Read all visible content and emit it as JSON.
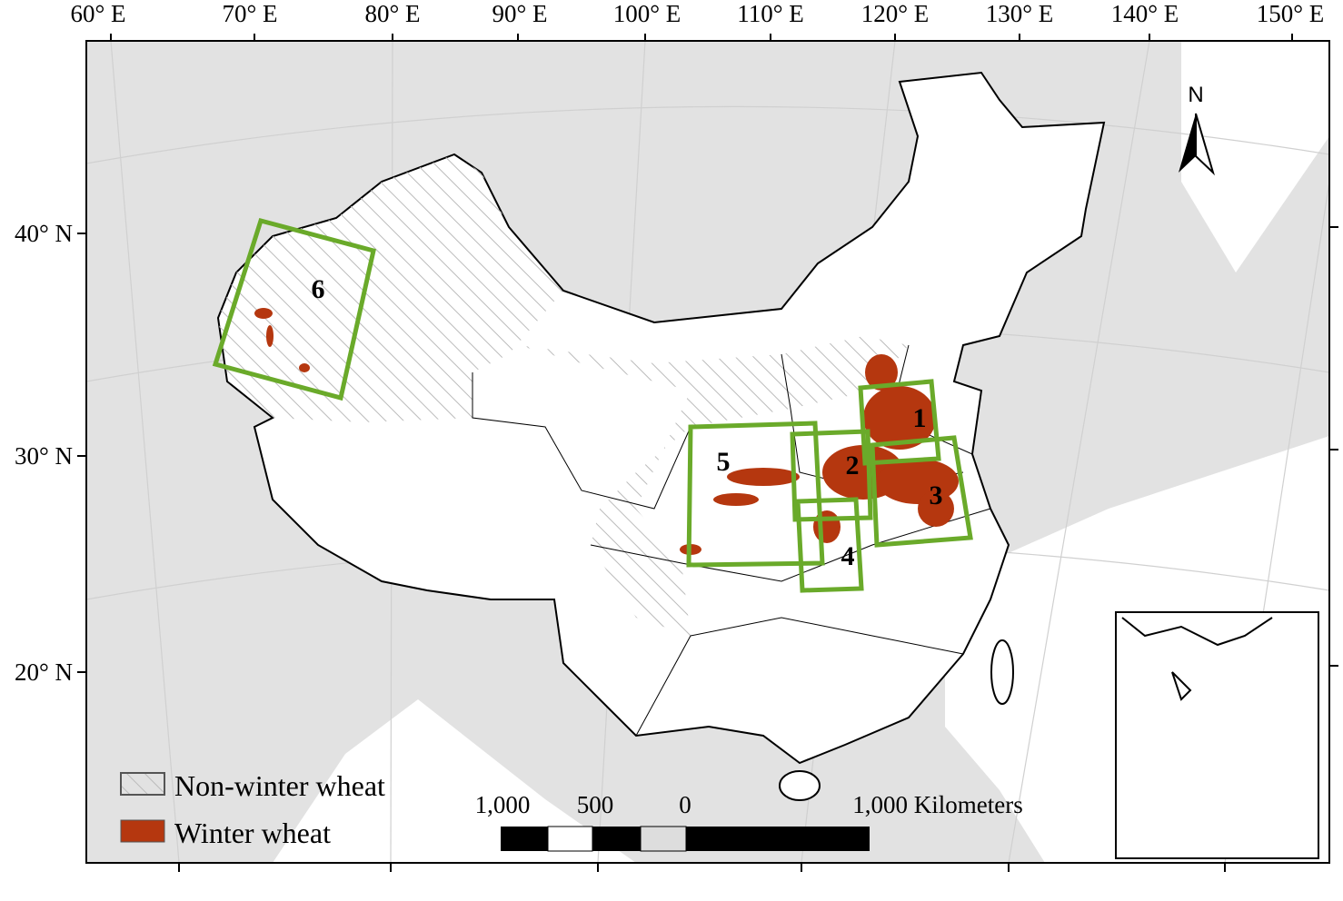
{
  "longitude_labels": [
    "60° E",
    "70° E",
    "80° E",
    "90° E",
    "100° E",
    "110° E",
    "120° E",
    "130° E",
    "140° E",
    "150° E"
  ],
  "latitude_labels": [
    "40° N",
    "30° N",
    "20° N"
  ],
  "north_arrow": "N",
  "study_areas": [
    "1",
    "2",
    "3",
    "4",
    "5",
    "6"
  ],
  "legend": [
    "Non-winter wheat",
    "Winter wheat"
  ],
  "scale_bar": [
    "1,000",
    "500",
    "0",
    "1,000 Kilometers"
  ]
}
